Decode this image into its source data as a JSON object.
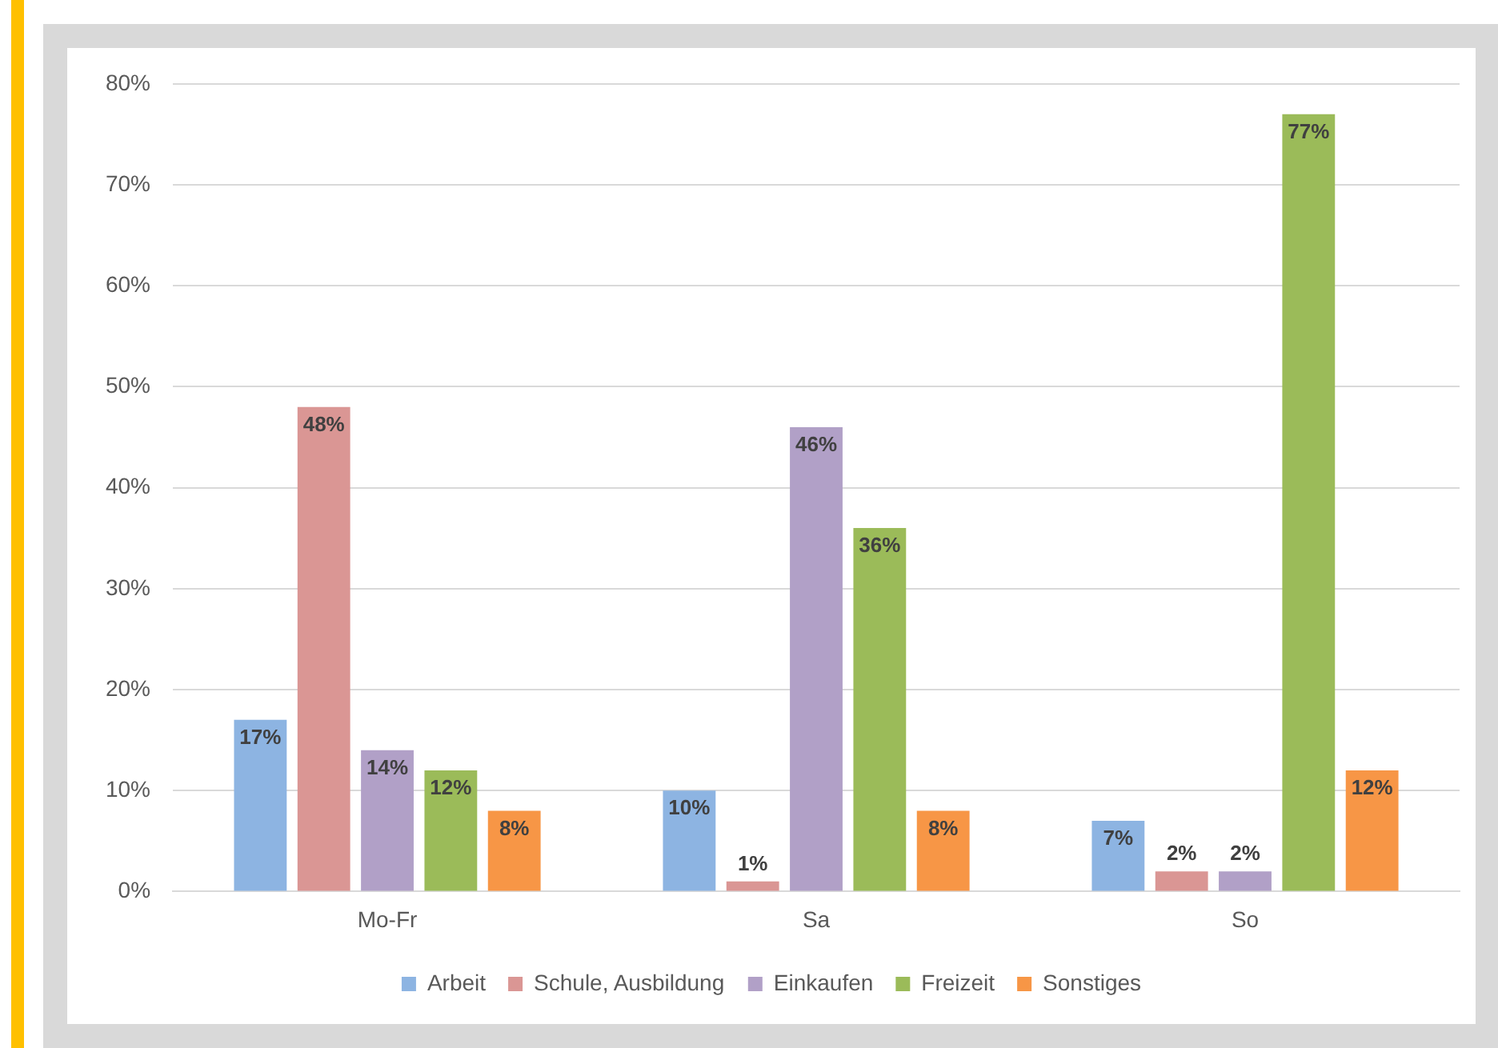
{
  "chart_data": {
    "type": "bar",
    "categories": [
      "Mo-Fr",
      "Sa",
      "So"
    ],
    "series": [
      {
        "name": "Arbeit",
        "color": "#8db4e2",
        "values": [
          17,
          10,
          7
        ],
        "value_labels": [
          "17%",
          "10%",
          "7%"
        ]
      },
      {
        "name": "Schule, Ausbildung",
        "color": "#da9694",
        "values": [
          48,
          1,
          2
        ],
        "value_labels": [
          "48%",
          "1%",
          "2%"
        ]
      },
      {
        "name": "Einkaufen",
        "color": "#b1a0c7",
        "values": [
          14,
          46,
          2
        ],
        "value_labels": [
          "14%",
          "46%",
          "2%"
        ]
      },
      {
        "name": "Freizeit",
        "color": "#9bbb59",
        "values": [
          12,
          36,
          77
        ],
        "value_labels": [
          "12%",
          "36%",
          "77%"
        ]
      },
      {
        "name": "Sonstiges",
        "color": "#f79646",
        "values": [
          8,
          8,
          12
        ],
        "value_labels": [
          "8%",
          "8%",
          "12%"
        ]
      }
    ],
    "ylim": [
      0,
      80
    ],
    "yticks": [
      {
        "value": 0,
        "label": "0%"
      },
      {
        "value": 10,
        "label": "10%"
      },
      {
        "value": 20,
        "label": "20%"
      },
      {
        "value": 30,
        "label": "30%"
      },
      {
        "value": 40,
        "label": "40%"
      },
      {
        "value": 50,
        "label": "50%"
      },
      {
        "value": 60,
        "label": "60%"
      },
      {
        "value": 70,
        "label": "70%"
      },
      {
        "value": 80,
        "label": "80%"
      }
    ],
    "grid": "y",
    "legend": "bottom"
  }
}
